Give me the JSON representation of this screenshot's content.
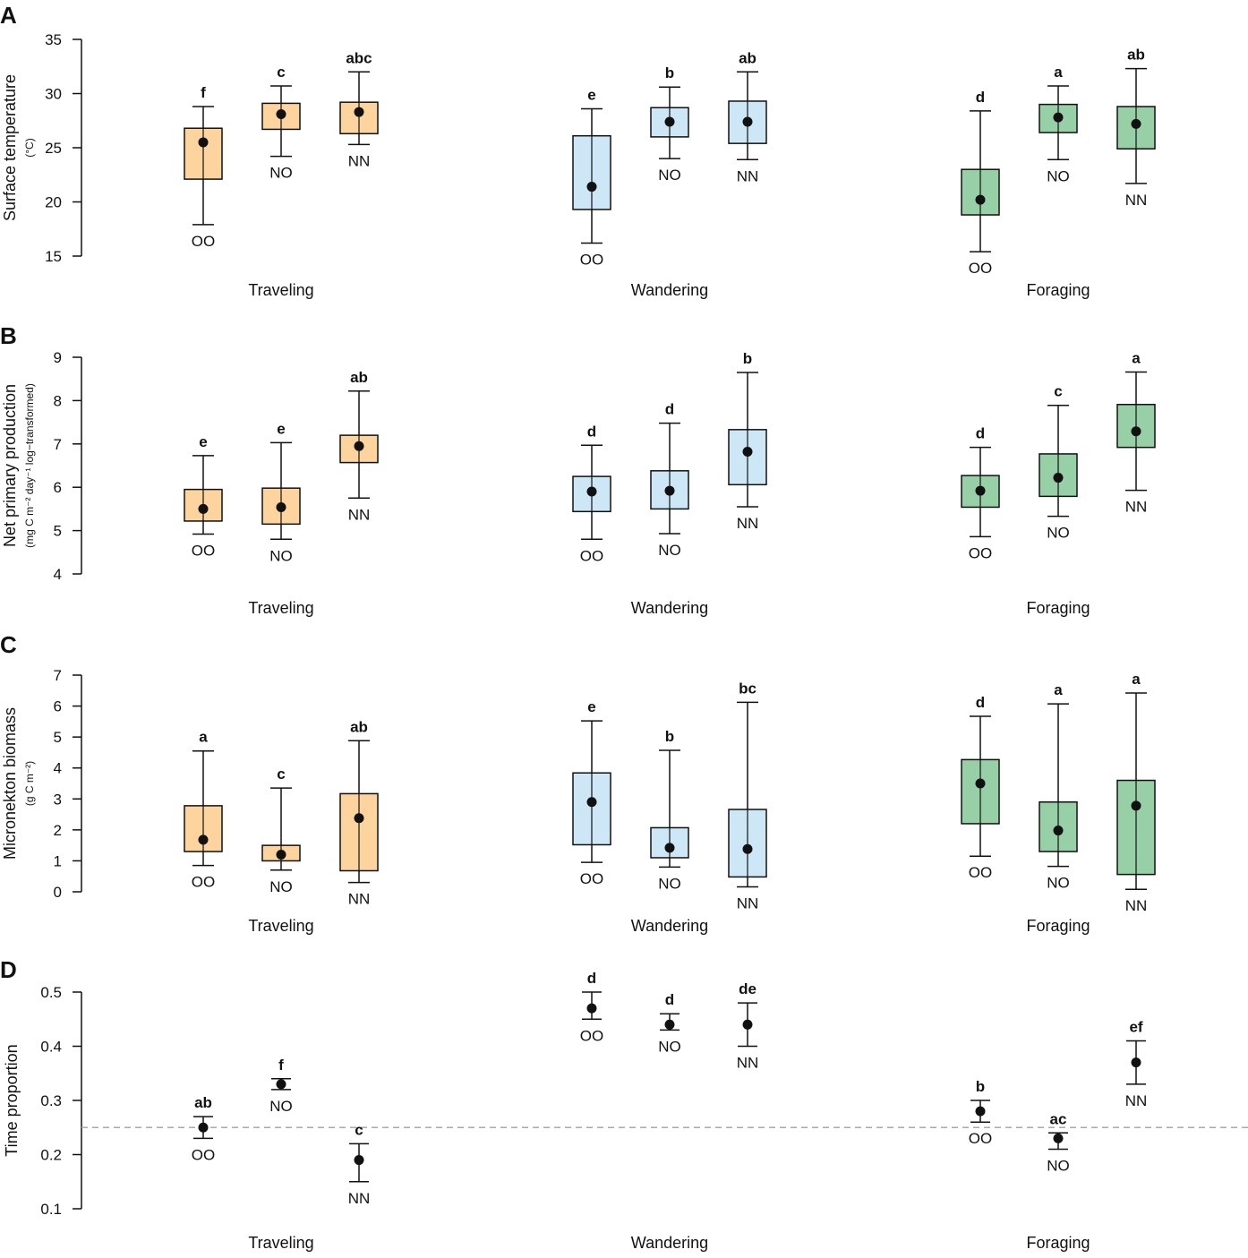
{
  "figure": {
    "colors": {
      "Traveling": "#fdd49e",
      "Wandering": "#cde7f7",
      "Foraging": "#97cfa6",
      "reference_line": "#aaaaaa",
      "ink": "#111111"
    }
  },
  "chart_data": [
    {
      "panel": "A",
      "type": "box",
      "ylabel": "Surface temperature",
      "ylabel_sub": "(°C)",
      "ylim": [
        15,
        35
      ],
      "yticks": [
        15,
        20,
        25,
        30,
        35
      ],
      "ytick_labels": [
        "15",
        "20",
        "25",
        "30",
        "35"
      ],
      "groups": [
        {
          "name": "Traveling",
          "items": [
            {
              "label": "OO",
              "letter": "f",
              "mean": 25.5,
              "q1": 22.1,
              "q3": 26.8,
              "lo": 17.9,
              "hi": 28.8
            },
            {
              "label": "NO",
              "letter": "c",
              "mean": 28.1,
              "q1": 26.7,
              "q3": 29.1,
              "lo": 24.2,
              "hi": 30.7
            },
            {
              "label": "NN",
              "letter": "abc",
              "mean": 28.3,
              "q1": 26.3,
              "q3": 29.2,
              "lo": 25.3,
              "hi": 32.0
            }
          ]
        },
        {
          "name": "Wandering",
          "items": [
            {
              "label": "OO",
              "letter": "e",
              "mean": 21.4,
              "q1": 19.3,
              "q3": 26.1,
              "lo": 16.2,
              "hi": 28.6
            },
            {
              "label": "NO",
              "letter": "b",
              "mean": 27.4,
              "q1": 26.0,
              "q3": 28.7,
              "lo": 24.0,
              "hi": 30.6
            },
            {
              "label": "NN",
              "letter": "ab",
              "mean": 27.4,
              "q1": 25.4,
              "q3": 29.3,
              "lo": 23.9,
              "hi": 32.0
            }
          ]
        },
        {
          "name": "Foraging",
          "items": [
            {
              "label": "OO",
              "letter": "d",
              "mean": 20.2,
              "q1": 18.8,
              "q3": 23.0,
              "lo": 15.4,
              "hi": 28.4
            },
            {
              "label": "NO",
              "letter": "a",
              "mean": 27.8,
              "q1": 26.4,
              "q3": 29.0,
              "lo": 23.9,
              "hi": 30.7
            },
            {
              "label": "NN",
              "letter": "ab",
              "mean": 27.2,
              "q1": 24.9,
              "q3": 28.8,
              "lo": 21.7,
              "hi": 32.3
            }
          ]
        }
      ]
    },
    {
      "panel": "B",
      "type": "box",
      "ylabel": "Net primary production",
      "ylabel_sub": "(mg C m⁻² day⁻¹ log−transformed)",
      "ylim": [
        4,
        9
      ],
      "yticks": [
        4,
        5,
        6,
        7,
        8,
        9
      ],
      "ytick_labels": [
        "4",
        "5",
        "6",
        "7",
        "8",
        "9"
      ],
      "groups": [
        {
          "name": "Traveling",
          "items": [
            {
              "label": "OO",
              "letter": "e",
              "mean": 5.5,
              "q1": 5.22,
              "q3": 5.95,
              "lo": 4.92,
              "hi": 6.73
            },
            {
              "label": "NO",
              "letter": "e",
              "mean": 5.54,
              "q1": 5.15,
              "q3": 5.98,
              "lo": 4.8,
              "hi": 7.03
            },
            {
              "label": "NN",
              "letter": "ab",
              "mean": 6.95,
              "q1": 6.57,
              "q3": 7.2,
              "lo": 5.75,
              "hi": 8.22
            }
          ]
        },
        {
          "name": "Wandering",
          "items": [
            {
              "label": "OO",
              "letter": "d",
              "mean": 5.9,
              "q1": 5.44,
              "q3": 6.25,
              "lo": 4.8,
              "hi": 6.97
            },
            {
              "label": "NO",
              "letter": "d",
              "mean": 5.92,
              "q1": 5.5,
              "q3": 6.38,
              "lo": 4.93,
              "hi": 7.48
            },
            {
              "label": "NN",
              "letter": "b",
              "mean": 6.82,
              "q1": 6.06,
              "q3": 7.33,
              "lo": 5.55,
              "hi": 8.65
            }
          ]
        },
        {
          "name": "Foraging",
          "items": [
            {
              "label": "OO",
              "letter": "d",
              "mean": 5.92,
              "q1": 5.54,
              "q3": 6.27,
              "lo": 4.86,
              "hi": 6.92
            },
            {
              "label": "NO",
              "letter": "c",
              "mean": 6.22,
              "q1": 5.79,
              "q3": 6.77,
              "lo": 5.33,
              "hi": 7.89
            },
            {
              "label": "NN",
              "letter": "a",
              "mean": 7.29,
              "q1": 6.92,
              "q3": 7.91,
              "lo": 5.93,
              "hi": 8.66
            }
          ]
        }
      ]
    },
    {
      "panel": "C",
      "type": "box",
      "ylabel": "Micronekton biomass",
      "ylabel_sub": "(g C m⁻²)",
      "ylim": [
        0,
        7
      ],
      "yticks": [
        0,
        1,
        2,
        3,
        4,
        5,
        6,
        7
      ],
      "ytick_labels": [
        "0",
        "1",
        "2",
        "3",
        "4",
        "5",
        "6",
        "7"
      ],
      "groups": [
        {
          "name": "Traveling",
          "items": [
            {
              "label": "OO",
              "letter": "a",
              "mean": 1.68,
              "q1": 1.3,
              "q3": 2.78,
              "lo": 0.85,
              "hi": 4.55
            },
            {
              "label": "NO",
              "letter": "c",
              "mean": 1.2,
              "q1": 1.0,
              "q3": 1.5,
              "lo": 0.7,
              "hi": 3.35
            },
            {
              "label": "NN",
              "letter": "ab",
              "mean": 2.38,
              "q1": 0.68,
              "q3": 3.17,
              "lo": 0.3,
              "hi": 4.88
            }
          ]
        },
        {
          "name": "Wandering",
          "items": [
            {
              "label": "OO",
              "letter": "e",
              "mean": 2.9,
              "q1": 1.52,
              "q3": 3.84,
              "lo": 0.95,
              "hi": 5.52
            },
            {
              "label": "NO",
              "letter": "b",
              "mean": 1.42,
              "q1": 1.1,
              "q3": 2.07,
              "lo": 0.8,
              "hi": 4.57
            },
            {
              "label": "NN",
              "letter": "bc",
              "mean": 1.38,
              "q1": 0.48,
              "q3": 2.66,
              "lo": 0.16,
              "hi": 6.12
            }
          ]
        },
        {
          "name": "Foraging",
          "items": [
            {
              "label": "OO",
              "letter": "d",
              "mean": 3.5,
              "q1": 2.2,
              "q3": 4.27,
              "lo": 1.15,
              "hi": 5.67
            },
            {
              "label": "NO",
              "letter": "a",
              "mean": 1.98,
              "q1": 1.3,
              "q3": 2.9,
              "lo": 0.82,
              "hi": 6.07
            },
            {
              "label": "NN",
              "letter": "a",
              "mean": 2.78,
              "q1": 0.56,
              "q3": 3.6,
              "lo": 0.08,
              "hi": 6.42
            }
          ]
        }
      ]
    },
    {
      "panel": "D",
      "type": "errorbar",
      "ylabel": "Time proportion",
      "ylabel_sub": "",
      "ylim": [
        0.1,
        0.5
      ],
      "yticks": [
        0.1,
        0.2,
        0.3,
        0.4,
        0.5
      ],
      "ytick_labels": [
        "0.1",
        "0.2",
        "0.3",
        "0.4",
        "0.5"
      ],
      "reference_line": 0.25,
      "groups": [
        {
          "name": "Traveling",
          "items": [
            {
              "label": "OO",
              "letter": "ab",
              "mean": 0.25,
              "lo": 0.23,
              "hi": 0.27
            },
            {
              "label": "NO",
              "letter": "f",
              "mean": 0.33,
              "lo": 0.32,
              "hi": 0.34
            },
            {
              "label": "NN",
              "letter": "c",
              "mean": 0.19,
              "lo": 0.15,
              "hi": 0.22
            }
          ]
        },
        {
          "name": "Wandering",
          "items": [
            {
              "label": "OO",
              "letter": "d",
              "mean": 0.47,
              "lo": 0.45,
              "hi": 0.5
            },
            {
              "label": "NO",
              "letter": "d",
              "mean": 0.44,
              "lo": 0.43,
              "hi": 0.46
            },
            {
              "label": "NN",
              "letter": "de",
              "mean": 0.44,
              "lo": 0.4,
              "hi": 0.48
            }
          ]
        },
        {
          "name": "Foraging",
          "items": [
            {
              "label": "OO",
              "letter": "b",
              "mean": 0.28,
              "lo": 0.26,
              "hi": 0.3
            },
            {
              "label": "NO",
              "letter": "ac",
              "mean": 0.23,
              "lo": 0.21,
              "hi": 0.24
            },
            {
              "label": "NN",
              "letter": "ef",
              "mean": 0.37,
              "lo": 0.33,
              "hi": 0.41
            }
          ]
        }
      ]
    }
  ]
}
